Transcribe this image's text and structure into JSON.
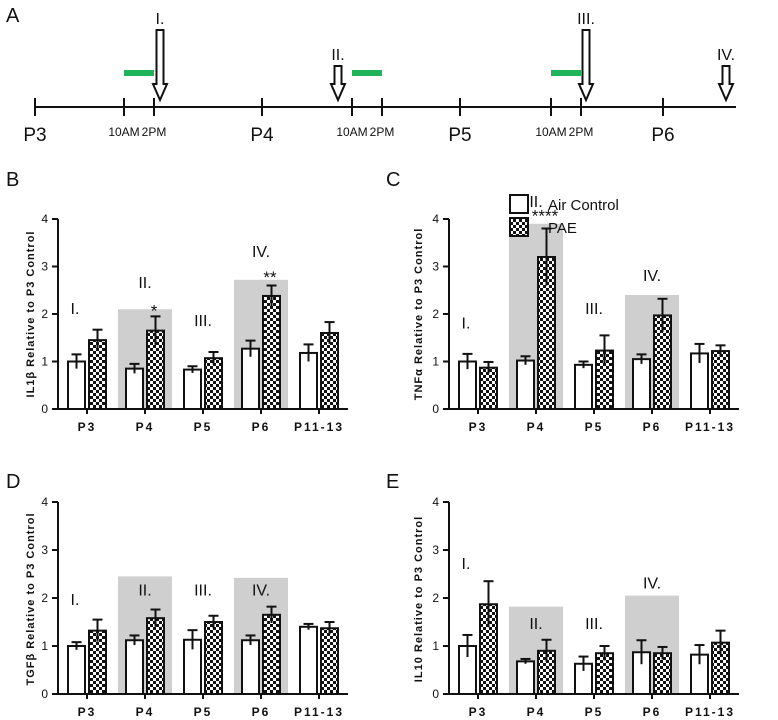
{
  "timeline": {
    "panel_letter": "A",
    "days": [
      "P3",
      "P4",
      "P5",
      "P6"
    ],
    "times": [
      "10AM",
      "2PM"
    ],
    "arrow_labels": [
      "I.",
      "II.",
      "III.",
      "IV."
    ],
    "exposure_color": "#1fb35a"
  },
  "legend": {
    "air_label": "Air Control",
    "pae_label": "PAE"
  },
  "colors": {
    "highlight": "#cfcfcf",
    "axis": "#111111",
    "bar_fill": "#ffffff",
    "exposure": "#1fb35a"
  },
  "chart_data": [
    {
      "panel": "B",
      "type": "bar",
      "ylabel": "IL1β Relative to P3 Control",
      "ylim": [
        0,
        4
      ],
      "yticks": [
        "0",
        "1",
        "2",
        "3",
        "4"
      ],
      "categories": [
        "P3",
        "P4",
        "P5",
        "P6",
        "P11-13"
      ],
      "series": [
        {
          "name": "Air Control",
          "values": [
            1.0,
            0.85,
            0.83,
            1.27,
            1.18
          ],
          "errors": [
            0.15,
            0.1,
            0.07,
            0.17,
            0.18
          ]
        },
        {
          "name": "PAE",
          "values": [
            1.45,
            1.65,
            1.07,
            2.38,
            1.6
          ],
          "errors": [
            0.22,
            0.3,
            0.13,
            0.22,
            0.23
          ]
        }
      ],
      "highlights": [
        {
          "category": 1,
          "top": 2.1
        },
        {
          "category": 3,
          "top": 2.72
        }
      ],
      "annotations": [
        {
          "text": "I.",
          "category": 0,
          "y": 2.0,
          "kind": "roman"
        },
        {
          "text": "II.",
          "category": 1,
          "y": 2.55,
          "kind": "roman"
        },
        {
          "text": "III.",
          "category": 2,
          "y": 1.75,
          "kind": "roman"
        },
        {
          "text": "IV.",
          "category": 3,
          "y": 3.2,
          "kind": "roman"
        },
        {
          "text": "*",
          "category": 1,
          "y": 1.95,
          "kind": "star"
        },
        {
          "text": "**",
          "category": 3,
          "y": 2.65,
          "kind": "star"
        }
      ]
    },
    {
      "panel": "C",
      "type": "bar",
      "ylabel": "TNFα Relative to P3 Control",
      "ylim": [
        0,
        4
      ],
      "yticks": [
        "0",
        "1",
        "2",
        "3",
        "4"
      ],
      "categories": [
        "P3",
        "P4",
        "P5",
        "P6",
        "P11-13"
      ],
      "series": [
        {
          "name": "Air Control",
          "values": [
            1.0,
            1.02,
            0.93,
            1.05,
            1.17
          ],
          "errors": [
            0.16,
            0.09,
            0.07,
            0.1,
            0.2
          ]
        },
        {
          "name": "PAE",
          "values": [
            0.87,
            3.2,
            1.23,
            1.97,
            1.22
          ],
          "errors": [
            0.12,
            0.6,
            0.32,
            0.35,
            0.12
          ]
        }
      ],
      "highlights": [
        {
          "category": 1,
          "top": 3.9
        },
        {
          "category": 3,
          "top": 2.4
        }
      ],
      "annotations": [
        {
          "text": "I.",
          "category": 0,
          "y": 1.7,
          "kind": "roman"
        },
        {
          "text": "II.",
          "category": 1,
          "y": 4.25,
          "kind": "roman"
        },
        {
          "text": "III.",
          "category": 2,
          "y": 2.0,
          "kind": "roman"
        },
        {
          "text": "IV.",
          "category": 3,
          "y": 2.7,
          "kind": "roman"
        },
        {
          "text": "****",
          "category": 1,
          "y": 3.95,
          "kind": "star"
        }
      ]
    },
    {
      "panel": "D",
      "type": "bar",
      "ylabel": "TGFβ Relative to P3 Control",
      "ylim": [
        0,
        4
      ],
      "yticks": [
        "0",
        "1",
        "2",
        "3",
        "4"
      ],
      "categories": [
        "P3",
        "P4",
        "P5",
        "P6",
        "P11-13"
      ],
      "series": [
        {
          "name": "Air Control",
          "values": [
            1.0,
            1.12,
            1.13,
            1.12,
            1.4
          ],
          "errors": [
            0.08,
            0.1,
            0.2,
            0.1,
            0.06
          ]
        },
        {
          "name": "PAE",
          "values": [
            1.32,
            1.58,
            1.5,
            1.65,
            1.37
          ],
          "errors": [
            0.23,
            0.18,
            0.13,
            0.17,
            0.13
          ]
        }
      ],
      "highlights": [
        {
          "category": 1,
          "top": 2.45
        },
        {
          "category": 3,
          "top": 2.42
        }
      ],
      "annotations": [
        {
          "text": "I.",
          "category": 0,
          "y": 1.85,
          "kind": "roman"
        },
        {
          "text": "II.",
          "category": 1,
          "y": 2.05,
          "kind": "roman"
        },
        {
          "text": "III.",
          "category": 2,
          "y": 2.05,
          "kind": "roman"
        },
        {
          "text": "IV.",
          "category": 3,
          "y": 2.05,
          "kind": "roman"
        }
      ]
    },
    {
      "panel": "E",
      "type": "bar",
      "ylabel": "IL10 Relative to P3 Control",
      "ylim": [
        0,
        4
      ],
      "yticks": [
        "0",
        "1",
        "2",
        "3",
        "4"
      ],
      "categories": [
        "P3",
        "P4",
        "P5",
        "P6",
        "P11-13"
      ],
      "series": [
        {
          "name": "Air Control",
          "values": [
            1.0,
            0.68,
            0.63,
            0.87,
            0.82
          ],
          "errors": [
            0.23,
            0.05,
            0.15,
            0.25,
            0.2
          ]
        },
        {
          "name": "PAE",
          "values": [
            1.87,
            0.9,
            0.85,
            0.85,
            1.07
          ],
          "errors": [
            0.48,
            0.23,
            0.15,
            0.13,
            0.25
          ]
        }
      ],
      "highlights": [
        {
          "category": 1,
          "top": 1.82
        },
        {
          "category": 3,
          "top": 2.05
        }
      ],
      "annotations": [
        {
          "text": "I.",
          "category": 0,
          "y": 2.6,
          "kind": "roman"
        },
        {
          "text": "II.",
          "category": 1,
          "y": 1.35,
          "kind": "roman"
        },
        {
          "text": "III.",
          "category": 2,
          "y": 1.35,
          "kind": "roman"
        },
        {
          "text": "IV.",
          "category": 3,
          "y": 2.2,
          "kind": "roman"
        }
      ]
    }
  ]
}
